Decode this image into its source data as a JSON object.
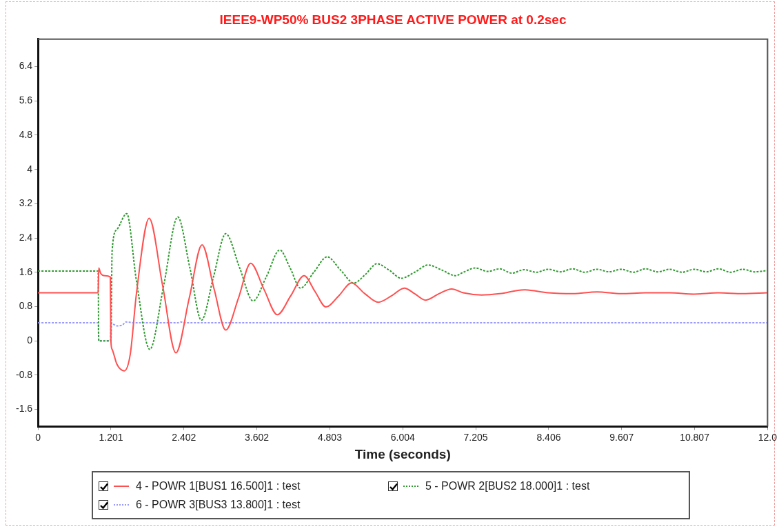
{
  "chart_data": {
    "type": "line",
    "title": "IEEE9-WP50% BUS2 3PHASE ACTIVE POWER at 0.2sec",
    "xlabel": "Time (seconds)",
    "xlim": [
      0,
      12.008
    ],
    "xticks": [
      0,
      1.201,
      2.402,
      3.602,
      4.803,
      6.004,
      7.205,
      8.406,
      9.607,
      10.807,
      {
        "value": 12.008,
        "label": "12.0"
      }
    ],
    "ylim": [
      -2,
      7.04
    ],
    "yticks": [
      -1.6,
      -0.8,
      0,
      0.8,
      1.6,
      2.4,
      3.2,
      4,
      4.8,
      5.6,
      6.4
    ],
    "grid": false,
    "legend": "bottom",
    "marker": "none",
    "series": [
      {
        "name": "4 - POWR 1[BUS1 16.500]1 : test",
        "color": "#ff5050",
        "line_style": "solid",
        "x": [
          0,
          0.99,
          1.0,
          1.03,
          1.1,
          1.19,
          1.2,
          1.22,
          1.3,
          1.42,
          1.52,
          1.62,
          1.83,
          2.05,
          2.27,
          2.49,
          2.7,
          2.9,
          3.09,
          3.3,
          3.5,
          3.72,
          3.94,
          4.16,
          4.38,
          4.56,
          4.74,
          4.95,
          5.16,
          5.38,
          5.6,
          5.82,
          6.03,
          6.2,
          6.38,
          6.6,
          6.81,
          7.0,
          7.3,
          7.6,
          8.0,
          8.4,
          8.8,
          9.2,
          9.6,
          10.0,
          10.4,
          10.8,
          11.2,
          11.6,
          12.0
        ],
        "values": [
          1.12,
          1.12,
          1.7,
          1.58,
          1.52,
          1.49,
          0,
          -0.2,
          -0.55,
          -0.7,
          -0.3,
          1.1,
          2.86,
          1.3,
          -0.28,
          1.0,
          2.24,
          1.2,
          0.25,
          1.0,
          1.81,
          1.2,
          0.61,
          1.05,
          1.52,
          1.15,
          0.79,
          1.05,
          1.35,
          1.1,
          0.9,
          1.05,
          1.23,
          1.1,
          0.95,
          1.1,
          1.21,
          1.12,
          1.07,
          1.1,
          1.19,
          1.12,
          1.1,
          1.14,
          1.1,
          1.12,
          1.12,
          1.09,
          1.12,
          1.1,
          1.12
        ]
      },
      {
        "name": "5 - POWR 2[BUS2 18.000]1 : test",
        "color": "#2e9a2e",
        "line_style": "dotted",
        "x": [
          0,
          0.99,
          1.0,
          1.19,
          1.2,
          1.22,
          1.3,
          1.46,
          1.62,
          1.84,
          2.07,
          2.3,
          2.5,
          2.69,
          2.89,
          3.09,
          3.32,
          3.54,
          3.76,
          3.98,
          4.15,
          4.32,
          4.54,
          4.76,
          4.98,
          5.2,
          5.39,
          5.58,
          5.78,
          5.98,
          6.2,
          6.42,
          6.65,
          6.87,
          7.0,
          7.2,
          7.4,
          7.6,
          7.8,
          8.0,
          8.2,
          8.4,
          8.6,
          8.8,
          9.0,
          9.2,
          9.4,
          9.6,
          9.8,
          10.0,
          10.2,
          10.4,
          10.6,
          10.8,
          11.0,
          11.2,
          11.4,
          11.6,
          11.8,
          12.0
        ],
        "values": [
          1.63,
          1.63,
          0,
          0,
          0,
          2.1,
          2.6,
          2.97,
          1.4,
          -0.2,
          1.3,
          2.89,
          1.7,
          0.48,
          1.5,
          2.5,
          1.7,
          0.93,
          1.5,
          2.12,
          1.7,
          1.23,
          1.6,
          1.96,
          1.65,
          1.35,
          1.55,
          1.8,
          1.65,
          1.46,
          1.6,
          1.77,
          1.65,
          1.52,
          1.6,
          1.7,
          1.62,
          1.68,
          1.58,
          1.66,
          1.6,
          1.67,
          1.61,
          1.68,
          1.6,
          1.67,
          1.61,
          1.67,
          1.6,
          1.68,
          1.61,
          1.67,
          1.6,
          1.67,
          1.61,
          1.68,
          1.6,
          1.67,
          1.61,
          1.64
        ]
      },
      {
        "name": "6 - POWR 3[BUS3 13.800]1 : test",
        "color": "#9999ff",
        "line_style": "dotted",
        "x": [
          0,
          0.99,
          1.0,
          1.19,
          1.2,
          1.25,
          1.3,
          1.38,
          1.45,
          1.6,
          2.3,
          2.35,
          2.4,
          12.0
        ],
        "values": [
          0.42,
          0.42,
          0,
          0,
          0.42,
          0.38,
          0.35,
          0.36,
          0.44,
          0.42,
          0.42,
          0.44,
          0.42,
          0.42
        ]
      }
    ]
  }
}
